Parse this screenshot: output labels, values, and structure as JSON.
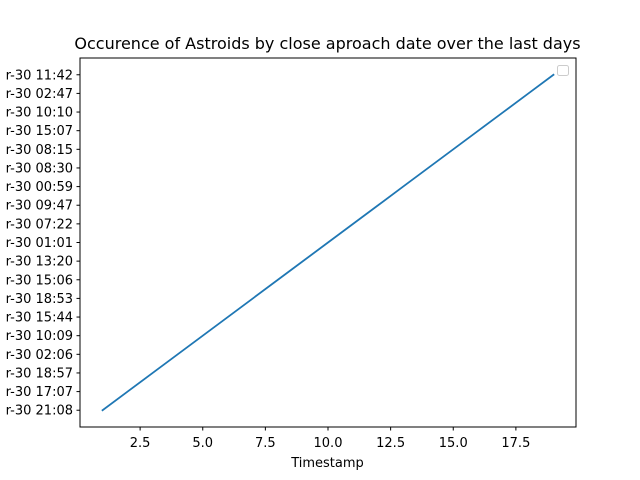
{
  "chart_data": {
    "type": "line",
    "title": "Occurence of Astroids by close aproach date over the last days",
    "xlabel": "Timestamp",
    "ylabel": "",
    "xlim": [
      0.1,
      19.9
    ],
    "x_ticks": [
      "2.5",
      "5.0",
      "7.5",
      "10.0",
      "12.5",
      "15.0",
      "17.5"
    ],
    "y_tick_labels": [
      "r-30 21:08",
      "r-30 17:07",
      "r-30 18:57",
      "r-30 02:06",
      "r-30 10:09",
      "r-30 15:44",
      "r-30 18:53",
      "r-30 15:06",
      "r-30 13:20",
      "r-30 01:01",
      "r-30 07:22",
      "r-30 09:47",
      "r-30 00:59",
      "r-30 08:30",
      "r-30 08:15",
      "r-30 15:07",
      "r-30 10:10",
      "r-30 02:47",
      "r-30 11:42"
    ],
    "x": [
      1,
      2,
      3,
      4,
      5,
      6,
      7,
      8,
      9,
      10,
      11,
      12,
      13,
      14,
      15,
      16,
      17,
      18,
      19
    ],
    "y": [
      "r-30 21:08",
      "r-30 17:07",
      "r-30 18:57",
      "r-30 02:06",
      "r-30 10:09",
      "r-30 15:44",
      "r-30 18:53",
      "r-30 15:06",
      "r-30 13:20",
      "r-30 01:01",
      "r-30 07:22",
      "r-30 09:47",
      "r-30 00:59",
      "r-30 08:30",
      "r-30 08:15",
      "r-30 15:07",
      "r-30 10:10",
      "r-30 02:47",
      "r-30 11:42"
    ],
    "legend": "upper right, empty",
    "grid": false,
    "colors": {
      "line": "#1f77b4"
    }
  }
}
